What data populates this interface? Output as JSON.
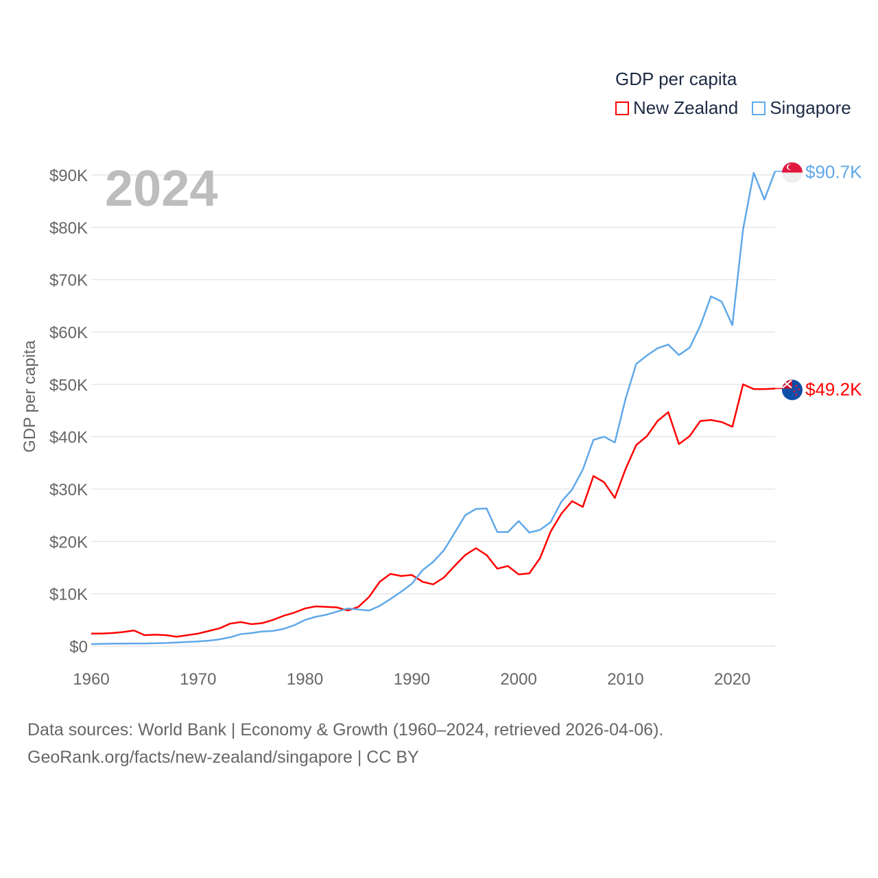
{
  "chart_data": {
    "type": "line",
    "title": "GDP per capita",
    "xlabel": "",
    "ylabel": "GDP per capita",
    "year_label": "2024",
    "xlim": [
      1960,
      2024
    ],
    "ylim": [
      0,
      90000
    ],
    "x_ticks": [
      1960,
      1970,
      1980,
      1990,
      2000,
      2010,
      2020
    ],
    "x_tick_labels": [
      "1960",
      "1970",
      "1980",
      "1990",
      "2000",
      "2010",
      "2020"
    ],
    "y_ticks": [
      0,
      10000,
      20000,
      30000,
      40000,
      50000,
      60000,
      70000,
      80000,
      90000
    ],
    "y_tick_labels": [
      "$0",
      "$10K",
      "$20K",
      "$30K",
      "$40K",
      "$50K",
      "$60K",
      "$70K",
      "$80K",
      "$90K"
    ],
    "grid": true,
    "legend_position": "top-right",
    "x": [
      1960,
      1961,
      1962,
      1963,
      1964,
      1965,
      1966,
      1967,
      1968,
      1969,
      1970,
      1971,
      1972,
      1973,
      1974,
      1975,
      1976,
      1977,
      1978,
      1979,
      1980,
      1981,
      1982,
      1983,
      1984,
      1985,
      1986,
      1987,
      1988,
      1989,
      1990,
      1991,
      1992,
      1993,
      1994,
      1995,
      1996,
      1997,
      1998,
      1999,
      2000,
      2001,
      2002,
      2003,
      2004,
      2005,
      2006,
      2007,
      2008,
      2009,
      2010,
      2011,
      2012,
      2013,
      2014,
      2015,
      2016,
      2017,
      2018,
      2019,
      2020,
      2021,
      2022,
      2023,
      2024
    ],
    "series": [
      {
        "name": "New Zealand",
        "color": "#ff0000",
        "end_label": "$49.2K",
        "values": [
          2400,
          2400,
          2500,
          2700,
          3000,
          2100,
          2200,
          2100,
          1800,
          2100,
          2400,
          2900,
          3400,
          4300,
          4600,
          4200,
          4400,
          5000,
          5800,
          6400,
          7200,
          7600,
          7500,
          7400,
          6800,
          7500,
          9400,
          12300,
          13800,
          13400,
          13600,
          12300,
          11800,
          13100,
          15300,
          17400,
          18700,
          17400,
          14800,
          15300,
          13700,
          13900,
          16800,
          21900,
          25300,
          27700,
          26600,
          32500,
          31300,
          28300,
          33800,
          38400,
          40100,
          43000,
          44700,
          38600,
          40100,
          43000,
          43200,
          42800,
          41900,
          50000,
          49100,
          49100,
          49200
        ]
      },
      {
        "name": "Singapore",
        "color": "#5fa8e8",
        "end_label": "$90.7K",
        "values": [
          400,
          450,
          470,
          490,
          500,
          500,
          550,
          600,
          700,
          800,
          900,
          1050,
          1300,
          1700,
          2300,
          2500,
          2800,
          2900,
          3300,
          4000,
          5000,
          5600,
          6000,
          6600,
          7200,
          7000,
          6800,
          7700,
          9000,
          10400,
          11900,
          14500,
          16100,
          18300,
          21600,
          25000,
          26200,
          26300,
          21800,
          21800,
          23900,
          21700,
          22200,
          23700,
          27600,
          29900,
          33700,
          39400,
          40000,
          38900,
          47200,
          53900,
          55500,
          56900,
          57600,
          55600,
          57000,
          61200,
          66800,
          65800,
          61300,
          79600,
          90400,
          85300,
          90700
        ]
      }
    ]
  },
  "footer": {
    "line1": "Data sources: World Bank | Economy & Growth (1960–2024, retrieved 2026-04-06).",
    "line2": "GeoRank.org/facts/new-zealand/singapore | CC BY"
  }
}
